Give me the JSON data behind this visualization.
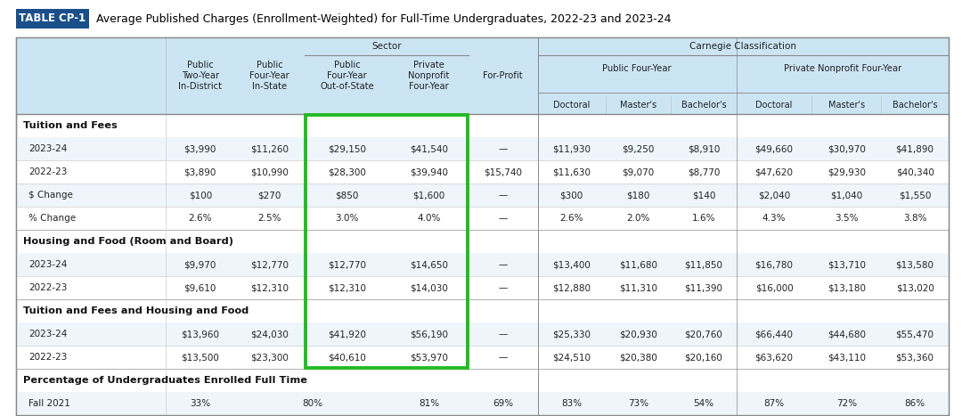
{
  "title_box": "TABLE CP-1",
  "title_text": " Average Published Charges (Enrollment-Weighted) for Full-Time Undergraduates, 2022-23 and 2023-24",
  "sections": [
    {
      "section_title": "Tuition and Fees",
      "rows": [
        {
          "label": "2023-24",
          "values": [
            "$3,990",
            "$11,260",
            "$29,150",
            "$41,540",
            "—",
            "$11,930",
            "$9,250",
            "$8,910",
            "$49,660",
            "$30,970",
            "$41,890"
          ]
        },
        {
          "label": "2022-23",
          "values": [
            "$3,890",
            "$10,990",
            "$28,300",
            "$39,940",
            "$15,740",
            "$11,630",
            "$9,070",
            "$8,770",
            "$47,620",
            "$29,930",
            "$40,340"
          ]
        },
        {
          "label": "$ Change",
          "values": [
            "$100",
            "$270",
            "$850",
            "$1,600",
            "—",
            "$300",
            "$180",
            "$140",
            "$2,040",
            "$1,040",
            "$1,550"
          ]
        },
        {
          "label": "% Change",
          "values": [
            "2.6%",
            "2.5%",
            "3.0%",
            "4.0%",
            "—",
            "2.6%",
            "2.0%",
            "1.6%",
            "4.3%",
            "3.5%",
            "3.8%"
          ]
        }
      ]
    },
    {
      "section_title": "Housing and Food (Room and Board)",
      "rows": [
        {
          "label": "2023-24",
          "values": [
            "$9,970",
            "$12,770",
            "$12,770",
            "$14,650",
            "—",
            "$13,400",
            "$11,680",
            "$11,850",
            "$16,780",
            "$13,710",
            "$13,580"
          ]
        },
        {
          "label": "2022-23",
          "values": [
            "$9,610",
            "$12,310",
            "$12,310",
            "$14,030",
            "—",
            "$12,880",
            "$11,310",
            "$11,390",
            "$16,000",
            "$13,180",
            "$13,020"
          ]
        }
      ]
    },
    {
      "section_title": "Tuition and Fees and Housing and Food",
      "rows": [
        {
          "label": "2023-24",
          "values": [
            "$13,960",
            "$24,030",
            "$41,920",
            "$56,190",
            "—",
            "$25,330",
            "$20,930",
            "$20,760",
            "$66,440",
            "$44,680",
            "$55,470"
          ]
        },
        {
          "label": "2022-23",
          "values": [
            "$13,500",
            "$23,300",
            "$40,610",
            "$53,970",
            "—",
            "$24,510",
            "$20,380",
            "$20,160",
            "$63,620",
            "$43,110",
            "$53,360"
          ]
        }
      ]
    },
    {
      "section_title": "Percentage of Undergraduates Enrolled Full Time",
      "rows": [
        {
          "label": "Fall 2021",
          "values": [
            "33%",
            "80%",
            "81%",
            "69%",
            "83%",
            "73%",
            "54%",
            "87%",
            "72%",
            "86%"
          ],
          "special_merge": true
        }
      ]
    }
  ],
  "bg_color_header": "#cce5f5",
  "highlight_box_color": "#22bb22",
  "title_box_bg": "#1a4f8a",
  "title_box_text_color": "#ffffff",
  "font_size_header": 7.5,
  "font_size_data": 7.5,
  "font_size_section": 8.2
}
